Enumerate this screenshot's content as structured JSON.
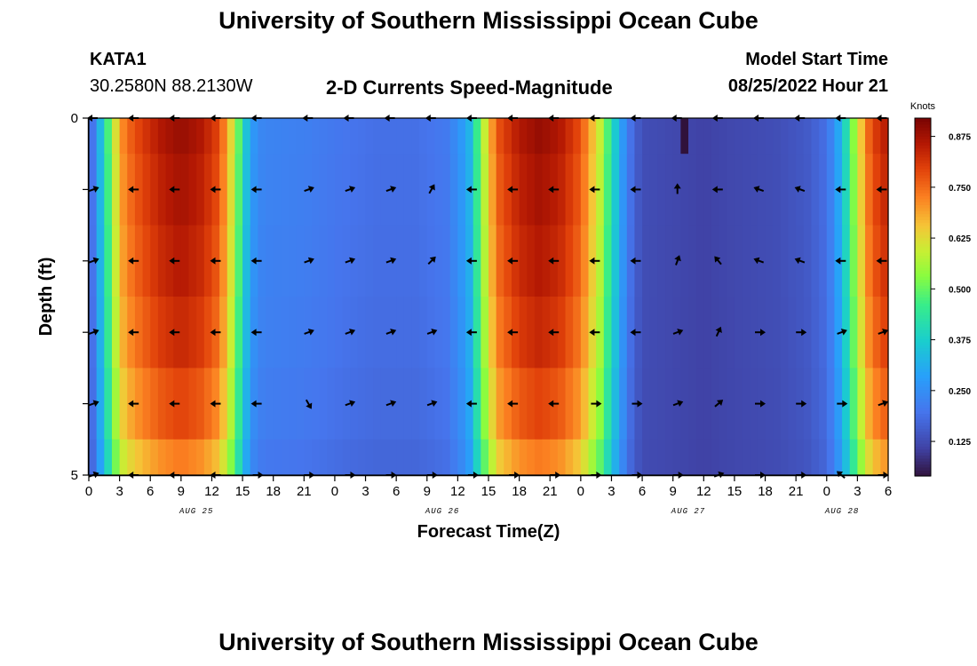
{
  "header": {
    "title": "University of Southern Mississippi Ocean Cube",
    "station": "KATA1",
    "coords": "30.2580N  88.2130W",
    "subtitle": "2-D Currents Speed-Magnitude",
    "model_start_label": "Model Start Time",
    "model_start_value": "08/25/2022 Hour 21"
  },
  "footer": {
    "title": "University of Southern Mississippi Ocean Cube"
  },
  "chart_data": {
    "type": "heatmap",
    "title": "2-D Currents Speed-Magnitude",
    "xlabel": "Forecast Time(Z)",
    "ylabel": "Depth (ft)",
    "x_tick_labels": [
      "0",
      "3",
      "6",
      "9",
      "12",
      "15",
      "18",
      "21",
      "0",
      "3",
      "6",
      "9",
      "12",
      "15",
      "18",
      "21",
      "0",
      "3",
      "6",
      "9",
      "12",
      "15",
      "18",
      "21",
      "0",
      "3",
      "6"
    ],
    "date_labels": [
      {
        "text": "AUG 25",
        "hour": 10.5
      },
      {
        "text": "AUG 26",
        "hour": 34.5
      },
      {
        "text": "AUG 27",
        "hour": 58.5
      },
      {
        "text": "AUG 28",
        "hour": 73.5
      }
    ],
    "x_range_hours": [
      0,
      78
    ],
    "y_tick_labels": [
      "0",
      "5"
    ],
    "y_range_ft": [
      0,
      5
    ],
    "depth_levels_ft": [
      0,
      1,
      2,
      3,
      4,
      5
    ],
    "colorbar": {
      "label": "Knots",
      "ticks": [
        "0.875",
        "0.750",
        "0.625",
        "0.500",
        "0.375",
        "0.250",
        "0.125"
      ],
      "tick_values": [
        0.875,
        0.75,
        0.625,
        0.5,
        0.375,
        0.25,
        0.125
      ],
      "range": [
        0.04,
        0.92
      ]
    },
    "speed_profile": [
      {
        "t": 0,
        "v": 0.14
      },
      {
        "t": 0.5,
        "v": 0.22
      },
      {
        "t": 1.5,
        "v": 0.4
      },
      {
        "t": 2.5,
        "v": 0.6
      },
      {
        "t": 3.5,
        "v": 0.74
      },
      {
        "t": 5,
        "v": 0.8
      },
      {
        "t": 7,
        "v": 0.86
      },
      {
        "t": 9,
        "v": 0.89
      },
      {
        "t": 11,
        "v": 0.86
      },
      {
        "t": 12.5,
        "v": 0.8
      },
      {
        "t": 13.5,
        "v": 0.7
      },
      {
        "t": 14.5,
        "v": 0.52
      },
      {
        "t": 15.3,
        "v": 0.36
      },
      {
        "t": 16,
        "v": 0.27
      },
      {
        "t": 17,
        "v": 0.23
      },
      {
        "t": 21,
        "v": 0.22
      },
      {
        "t": 25,
        "v": 0.2
      },
      {
        "t": 28,
        "v": 0.19
      },
      {
        "t": 32,
        "v": 0.19
      },
      {
        "t": 35,
        "v": 0.21
      },
      {
        "t": 37,
        "v": 0.3
      },
      {
        "t": 38,
        "v": 0.48
      },
      {
        "t": 39,
        "v": 0.66
      },
      {
        "t": 40,
        "v": 0.78
      },
      {
        "t": 42,
        "v": 0.86
      },
      {
        "t": 44,
        "v": 0.89
      },
      {
        "t": 46,
        "v": 0.86
      },
      {
        "t": 48,
        "v": 0.78
      },
      {
        "t": 50,
        "v": 0.58
      },
      {
        "t": 51,
        "v": 0.42
      },
      {
        "t": 52,
        "v": 0.28
      },
      {
        "t": 53,
        "v": 0.18
      },
      {
        "t": 54,
        "v": 0.13
      },
      {
        "t": 57,
        "v": 0.12
      },
      {
        "t": 60,
        "v": 0.11
      },
      {
        "t": 63,
        "v": 0.12
      },
      {
        "t": 67,
        "v": 0.13
      },
      {
        "t": 70,
        "v": 0.15
      },
      {
        "t": 72,
        "v": 0.19
      },
      {
        "t": 73,
        "v": 0.28
      },
      {
        "t": 74,
        "v": 0.42
      },
      {
        "t": 75,
        "v": 0.6
      },
      {
        "t": 76,
        "v": 0.75
      },
      {
        "t": 77,
        "v": 0.82
      },
      {
        "t": 78,
        "v": 0.86
      }
    ],
    "depth_factors": [
      1.0,
      0.98,
      0.96,
      0.93,
      0.88,
      0.8
    ],
    "surface_dark_cell": {
      "t0": 57.5,
      "t1": 58.8,
      "v": 0.04
    },
    "arrow_hours": [
      0,
      4,
      8,
      12,
      16,
      21,
      25,
      29,
      33,
      37,
      41,
      45,
      49,
      53,
      57,
      61,
      65,
      69,
      73,
      77
    ],
    "arrow_directions_deg": [
      [
        180,
        180,
        180,
        180,
        180,
        180,
        180,
        180,
        180,
        180,
        180,
        180,
        180,
        180,
        180,
        180,
        180,
        180,
        180,
        180
      ],
      [
        20,
        180,
        180,
        180,
        180,
        20,
        20,
        20,
        60,
        180,
        180,
        180,
        180,
        180,
        90,
        180,
        160,
        160,
        180,
        180
      ],
      [
        20,
        180,
        180,
        180,
        180,
        20,
        20,
        20,
        45,
        180,
        180,
        180,
        180,
        180,
        70,
        130,
        160,
        160,
        180,
        180
      ],
      [
        20,
        180,
        180,
        180,
        180,
        20,
        20,
        20,
        20,
        180,
        180,
        180,
        180,
        180,
        20,
        65,
        0,
        0,
        20,
        20
      ],
      [
        20,
        180,
        180,
        180,
        180,
        300,
        20,
        20,
        20,
        180,
        180,
        180,
        0,
        0,
        20,
        40,
        0,
        0,
        0,
        20
      ],
      [
        20,
        180,
        180,
        180,
        0,
        0,
        0,
        0,
        0,
        0,
        0,
        0,
        0,
        0,
        0,
        20,
        0,
        0,
        140,
        0
      ]
    ]
  }
}
